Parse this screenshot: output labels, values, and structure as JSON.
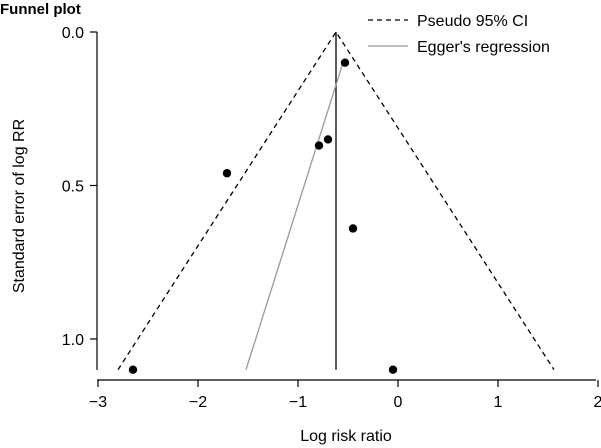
{
  "chart_data": {
    "type": "scatter",
    "title": "Funnel plot",
    "xlabel": "Log risk ratio",
    "ylabel": "Standard error of log RR",
    "xlim": [
      -3.05,
      2.0
    ],
    "ylim": [
      0.0,
      1.12
    ],
    "y_reversed": true,
    "grid": false,
    "legend_position": "top-right",
    "x_ticks": [
      {
        "value": -3,
        "label": "−3"
      },
      {
        "value": -2,
        "label": "−2"
      },
      {
        "value": -1,
        "label": "−1"
      },
      {
        "value": 0,
        "label": "0"
      },
      {
        "value": 1,
        "label": "1"
      },
      {
        "value": 2,
        "label": "2"
      }
    ],
    "y_ticks": [
      {
        "value": 0.0,
        "label": "0.0"
      },
      {
        "value": 0.5,
        "label": "0.5"
      },
      {
        "value": 1.0,
        "label": "1.0"
      }
    ],
    "points": [
      {
        "x": -0.53,
        "y": 0.1
      },
      {
        "x": -0.7,
        "y": 0.35
      },
      {
        "x": -0.79,
        "y": 0.37
      },
      {
        "x": -1.71,
        "y": 0.46
      },
      {
        "x": -0.45,
        "y": 0.64
      },
      {
        "x": -2.65,
        "y": 1.1
      },
      {
        "x": -0.05,
        "y": 1.1
      }
    ],
    "pooled_estimate": -0.62,
    "ci_funnel": {
      "name": "Pseudo 95% CI",
      "apex": {
        "x": -0.62,
        "y": 0.0
      },
      "left_base": {
        "x": -2.8,
        "y": 1.1
      },
      "right_base": {
        "x": 1.56,
        "y": 1.1
      }
    },
    "egger_line": {
      "name": "Egger's regression",
      "points": [
        {
          "x": -0.55,
          "y": 0.1
        },
        {
          "x": -1.52,
          "y": 1.1
        }
      ]
    },
    "series_styles": {
      "ci": {
        "color": "#000000",
        "dash": "dashed"
      },
      "egger": {
        "color": "#999999"
      },
      "points": {
        "color": "#000000"
      }
    }
  }
}
